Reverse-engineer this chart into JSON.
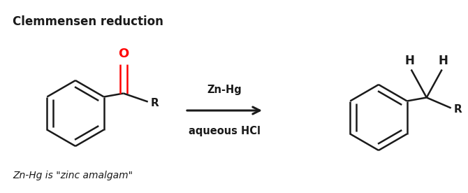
{
  "title": "Clemmensen reduction",
  "title_fontsize": 12,
  "title_weight": "bold",
  "footnote": "Zn-Hg is \"zinc amalgam\"",
  "footnote_style": "italic",
  "footnote_fontsize": 10,
  "arrow_label_top": "Zn-Hg",
  "arrow_label_bottom": "aqueous HCl",
  "arrow_label_fontsize": 10.5,
  "arrow_label_weight": "bold",
  "bg_color": "#ffffff",
  "text_color": "#1a1a1a",
  "oxygen_color": "#ff0000",
  "line_width": 1.8,
  "arrow_lw": 2.2,
  "figsize": [
    6.7,
    2.76
  ],
  "dpi": 100
}
